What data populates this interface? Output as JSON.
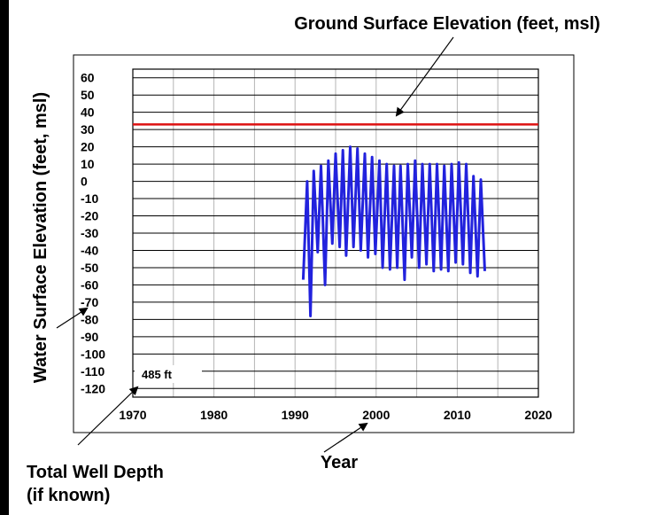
{
  "chart_data": {
    "type": "line",
    "title": "",
    "xlabel": "Year",
    "ylabel": "Water Surface Elevation (feet, msl)",
    "xlim": [
      1970,
      2020
    ],
    "ylim": [
      -125,
      65
    ],
    "xticks": [
      1970,
      1980,
      1990,
      2000,
      2010,
      2020
    ],
    "yticks": [
      60,
      50,
      40,
      30,
      20,
      10,
      0,
      -10,
      -20,
      -30,
      -40,
      -50,
      -60,
      -70,
      -80,
      -90,
      -100,
      -110,
      -120
    ],
    "grid": true,
    "series": [
      {
        "color": "#2222dd",
        "x": [
          1991.0,
          1991.5,
          1991.9,
          1992.3,
          1992.8,
          1993.2,
          1993.7,
          1994.1,
          1994.6,
          1995.0,
          1995.5,
          1995.9,
          1996.3,
          1996.8,
          1997.2,
          1997.7,
          1998.1,
          1998.6,
          1999.0,
          1999.5,
          1999.9,
          2000.4,
          2000.8,
          2001.3,
          2001.7,
          2002.2,
          2002.6,
          2003.0,
          2003.5,
          2003.9,
          2004.4,
          2004.8,
          2005.3,
          2005.7,
          2006.2,
          2006.6,
          2007.1,
          2007.5,
          2008.0,
          2008.4,
          2008.9,
          2009.3,
          2009.8,
          2010.2,
          2010.7,
          2011.1,
          2011.6,
          2012.0,
          2012.5,
          2012.9,
          2013.4
        ],
        "values": [
          -57,
          0,
          -78,
          6,
          -41,
          9,
          -60,
          12,
          -36,
          16,
          -38,
          18,
          -43,
          20,
          -38,
          19,
          -40,
          16,
          -44,
          14,
          -42,
          12,
          -50,
          10,
          -51,
          9,
          -50,
          9,
          -57,
          10,
          -44,
          12,
          -50,
          10,
          -48,
          10,
          -52,
          10,
          -51,
          9,
          -52,
          10,
          -47,
          11,
          -48,
          10,
          -53,
          3,
          -55,
          1,
          -52
        ]
      }
    ],
    "reference_lines": [
      {
        "y": 33,
        "color": "#dd1111",
        "label": "Ground Surface Elevation (feet, msl)"
      }
    ],
    "annotations": {
      "well_depth_box": "485 ft",
      "well_depth_label_line1": "Total Well Depth",
      "well_depth_label_line2": "(if known)"
    }
  }
}
